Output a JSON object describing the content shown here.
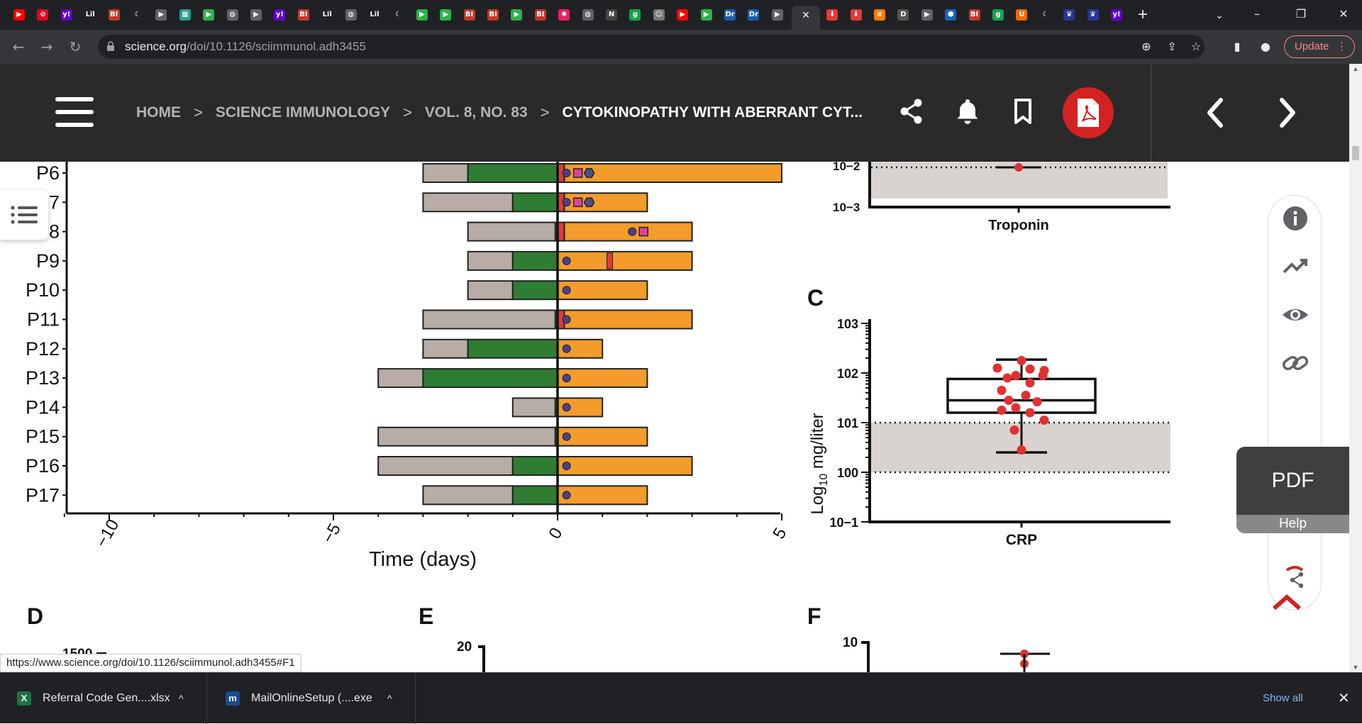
{
  "tabs": [
    {
      "icon": "youtube-icon",
      "glyph": "▶",
      "color": "#ff0000"
    },
    {
      "icon": "pinterest-icon",
      "glyph": "⊘",
      "color": "#e60023"
    },
    {
      "icon": "yahoo-icon",
      "glyph": "y!",
      "color": "#6001d2"
    },
    {
      "icon": "lil-icon",
      "glyph": "Lil",
      "color": "#202124"
    },
    {
      "icon": "bi-icon",
      "glyph": "BI",
      "color": "#c0392b"
    },
    {
      "icon": "crescent-icon",
      "glyph": "☾",
      "color": "#202124"
    },
    {
      "icon": "slides-icon",
      "glyph": "▶",
      "color": "#5f6368"
    },
    {
      "icon": "photo-icon",
      "glyph": "▦",
      "color": "#2a9d8f"
    },
    {
      "icon": "play-green-icon",
      "glyph": "▶",
      "color": "#2db14b"
    },
    {
      "icon": "globe-icon",
      "glyph": "◍",
      "color": "#5f6368"
    },
    {
      "icon": "slides-icon",
      "glyph": "▶",
      "color": "#5f6368"
    },
    {
      "icon": "yahoo-icon",
      "glyph": "y!",
      "color": "#6001d2"
    },
    {
      "icon": "bi-icon",
      "glyph": "BI",
      "color": "#c0392b"
    },
    {
      "icon": "lil-icon",
      "glyph": "Lil",
      "color": "#202124"
    },
    {
      "icon": "globe-icon",
      "glyph": "◍",
      "color": "#5f6368"
    },
    {
      "icon": "lil-icon",
      "glyph": "Lil",
      "color": "#202124"
    },
    {
      "icon": "crescent-icon",
      "glyph": "☾",
      "color": "#202124"
    },
    {
      "icon": "play-green-icon",
      "glyph": "▶",
      "color": "#2db14b"
    },
    {
      "icon": "play-green-icon",
      "glyph": "▶",
      "color": "#2db14b"
    },
    {
      "icon": "bi-icon",
      "glyph": "BI",
      "color": "#c0392b"
    },
    {
      "icon": "bi-icon",
      "glyph": "BI",
      "color": "#c0392b"
    },
    {
      "icon": "play-green-icon",
      "glyph": "▶",
      "color": "#2db14b"
    },
    {
      "icon": "bi-icon",
      "glyph": "BI",
      "color": "#c0392b"
    },
    {
      "icon": "burst-icon",
      "glyph": "✺",
      "color": "#e91e63"
    },
    {
      "icon": "globe-icon",
      "glyph": "◍",
      "color": "#5f6368"
    },
    {
      "icon": "news-icon",
      "glyph": "N",
      "color": "#444"
    },
    {
      "icon": "g-icon",
      "glyph": "g",
      "color": "#14a44d"
    },
    {
      "icon": "portrait-icon",
      "glyph": "☺",
      "color": "#777"
    },
    {
      "icon": "youtube-icon",
      "glyph": "▶",
      "color": "#ff0000"
    },
    {
      "icon": "play-green-icon",
      "glyph": "▶",
      "color": "#2db14b"
    },
    {
      "icon": "dr-icon",
      "glyph": "Dr",
      "color": "#1a5ea8"
    },
    {
      "icon": "dr-icon",
      "glyph": "Dr",
      "color": "#1a5ea8"
    },
    {
      "icon": "slides-icon",
      "glyph": "▶",
      "color": "#5f6368"
    },
    {
      "icon": "active-tab-close",
      "glyph": "×",
      "color": "#35363a",
      "active": true
    },
    {
      "icon": "pin-icon",
      "glyph": "⬇",
      "color": "#e53935"
    },
    {
      "icon": "pin-icon",
      "glyph": "⬇",
      "color": "#e53935"
    },
    {
      "icon": "bookmark-orange-icon",
      "glyph": "≡",
      "color": "#f57c00"
    },
    {
      "icon": "d-icon",
      "glyph": "D",
      "color": "#555"
    },
    {
      "icon": "slides-icon",
      "glyph": "▶",
      "color": "#5f6368"
    },
    {
      "icon": "hex-icon",
      "glyph": "⬢",
      "color": "#1565c0"
    },
    {
      "icon": "bi-icon",
      "glyph": "BI",
      "color": "#c0392b"
    },
    {
      "icon": "g-icon",
      "glyph": "g",
      "color": "#14a44d"
    },
    {
      "icon": "shield-icon",
      "glyph": "U",
      "color": "#ef6c00"
    },
    {
      "icon": "crescent-icon",
      "glyph": "☾",
      "color": "#202124"
    },
    {
      "icon": "crest-icon",
      "glyph": "♛",
      "color": "#283593"
    },
    {
      "icon": "crest-icon",
      "glyph": "♛",
      "color": "#283593"
    },
    {
      "icon": "yahoo-icon",
      "glyph": "y!",
      "color": "#6001d2"
    }
  ],
  "browser": {
    "url_domain": "science.org",
    "url_path": "/doi/10.1126/sciimmunol.adh3455",
    "update_label": "Update",
    "new_tab": "+",
    "tab_search": "⌄",
    "minimize": "–",
    "maximize": "❐",
    "close": "✕"
  },
  "site_header": {
    "crumbs": [
      "HOME",
      "SCIENCE IMMUNOLOGY",
      "VOL. 8, NO. 83"
    ],
    "current": "CYTOKINOPATHY WITH ABERRANT CYT...",
    "separator": ">"
  },
  "timeline": {
    "patients": [
      {
        "label": "P6",
        "gray": [
          -3,
          -2
        ],
        "green": [
          -2,
          0
        ],
        "red": [
          0,
          0.15
        ],
        "orange": [
          0.15,
          5
        ],
        "markers": [
          "circle",
          "square",
          "hexagon"
        ]
      },
      {
        "label": "P7",
        "gray": [
          -3,
          -1
        ],
        "green": [
          -1,
          0
        ],
        "red": [
          0,
          0.15
        ],
        "orange": [
          0.15,
          2
        ],
        "markers": [
          "circle",
          "square",
          "hexagon"
        ]
      },
      {
        "label": "P8",
        "gray": [
          -2,
          -0.05
        ],
        "green": [
          -0.05,
          0
        ],
        "red": [
          0,
          0.15
        ],
        "orange": [
          0.15,
          3
        ],
        "markers": [
          "circle",
          "square"
        ]
      },
      {
        "label": "P9",
        "gray": [
          -2,
          -1
        ],
        "green": [
          -1,
          0
        ],
        "red": null,
        "orange": [
          0,
          3
        ],
        "redmark": 1.1,
        "markers": [
          "circle"
        ]
      },
      {
        "label": "P10",
        "gray": [
          -2,
          -1
        ],
        "green": [
          -1,
          0
        ],
        "red": null,
        "orange": [
          0,
          2
        ],
        "markers": [
          "circle"
        ]
      },
      {
        "label": "P11",
        "gray": [
          -3,
          -0.05
        ],
        "green": [
          -0.05,
          0
        ],
        "red": [
          0,
          0.15
        ],
        "orange": [
          0.15,
          3
        ],
        "markers": [
          "circle"
        ]
      },
      {
        "label": "P12",
        "gray": [
          -3,
          -2
        ],
        "green": [
          -2,
          0
        ],
        "red": null,
        "orange": [
          0,
          1
        ],
        "markers": [
          "circle"
        ]
      },
      {
        "label": "P13",
        "gray": [
          -4,
          -3
        ],
        "green": [
          -3,
          0
        ],
        "red": null,
        "orange": [
          0,
          2
        ],
        "markers": [
          "circle"
        ]
      },
      {
        "label": "P14",
        "gray": [
          -1,
          -0.05
        ],
        "green": [
          -0.05,
          0
        ],
        "red": null,
        "orange": [
          0,
          1
        ],
        "markers": [
          "circle"
        ]
      },
      {
        "label": "P15",
        "gray": [
          -4,
          -0.05
        ],
        "green": [
          -0.05,
          0
        ],
        "red": null,
        "orange": [
          0,
          2
        ],
        "markers": [
          "circle"
        ]
      },
      {
        "label": "P16",
        "gray": [
          -4,
          -1
        ],
        "green": [
          -1,
          0
        ],
        "red": null,
        "orange": [
          0,
          3
        ],
        "markers": [
          "circle"
        ]
      },
      {
        "label": "P17",
        "gray": [
          -3,
          -1
        ],
        "green": [
          -1,
          0
        ],
        "red": null,
        "orange": [
          0,
          2
        ],
        "markers": [
          "circle"
        ]
      }
    ],
    "xticks": [
      "−10",
      "−5",
      "0",
      "5"
    ],
    "xlabel": "Time (days)"
  },
  "chart_data": [
    {
      "type": "bar",
      "title": "",
      "xlabel": "Time (days)",
      "xlim": [
        -11,
        5
      ],
      "categories": [
        "P6",
        "P7",
        "P8",
        "P9",
        "P10",
        "P11",
        "P12",
        "P13",
        "P14",
        "P15",
        "P16",
        "P17"
      ],
      "series": [
        {
          "name": "gray",
          "start": [
            -3,
            -3,
            -2,
            -2,
            -2,
            -3,
            -3,
            -4,
            -1,
            -4,
            -4,
            -3
          ],
          "end": [
            -2,
            -1,
            -0.05,
            -1,
            -1,
            -0.05,
            -2,
            -3,
            -0.05,
            -0.05,
            -1,
            -1
          ]
        },
        {
          "name": "green",
          "start": [
            -2,
            -1,
            -0.05,
            -1,
            -1,
            -0.05,
            -2,
            -3,
            -0.05,
            -0.05,
            -1,
            -1
          ],
          "end": [
            0,
            0,
            0,
            0,
            0,
            0,
            0,
            0,
            0,
            0,
            0,
            0
          ]
        },
        {
          "name": "orange",
          "start": [
            0,
            0,
            0,
            0,
            0,
            0,
            0,
            0,
            0,
            0,
            0,
            0
          ],
          "end": [
            5,
            2,
            3,
            3,
            2,
            3,
            1,
            2,
            1,
            2,
            3,
            2
          ]
        }
      ]
    },
    {
      "type": "scatter",
      "panel": "troponin",
      "xlabel": "Troponin",
      "yticks": [
        "10−2",
        "10−3"
      ],
      "points_log10": [
        -2
      ]
    },
    {
      "type": "scatter",
      "panel": "C",
      "panel_label": "C",
      "title": "",
      "xlabel": "CRP",
      "ylabel": "Log10 mg/liter",
      "yscale": "log",
      "ylim": [
        -1,
        3
      ],
      "yticks": [
        "10−1",
        "100",
        "101",
        "102",
        "103"
      ],
      "normal_range_log10": [
        0,
        1
      ],
      "box_log10": {
        "min": 0.4,
        "q1": 1.2,
        "median": 1.45,
        "q3": 1.88,
        "max": 2.27
      },
      "points_log10": [
        2.25,
        2.1,
        2.08,
        2.05,
        1.95,
        1.95,
        1.9,
        1.8,
        1.65,
        1.55,
        1.45,
        1.42,
        1.3,
        1.25,
        1.2,
        1.05,
        0.85,
        0.45
      ]
    }
  ],
  "panels": {
    "c_label": "C",
    "d_label": "D",
    "e_label": "E",
    "f_label": "F",
    "d_tick": "1500",
    "e_tick": "20",
    "f_tick": "10",
    "c_ylabel_main": "Log",
    "c_ylabel_sub": "10",
    "c_ylabel_rest": " mg/liter",
    "c_xlabel": "CRP",
    "trop_xlabel": "Troponin"
  },
  "sidebar": {
    "pdf_label": "PDF",
    "help_label": "Help"
  },
  "status_url": "https://www.science.org/doi/10.1126/sciimmunol.adh3455#F1",
  "downloads": [
    {
      "name": "Referral Code Gen....xlsx",
      "icon": "excel-icon",
      "icon_glyph": "X",
      "color": "#1e7145"
    },
    {
      "name": "MailOnlineSetup (....exe",
      "icon": "mailonline-icon",
      "icon_glyph": "m",
      "color": "#1a4c8f"
    }
  ],
  "download_bar": {
    "show_all": "Show all",
    "close": "✕",
    "chevron": "^"
  }
}
